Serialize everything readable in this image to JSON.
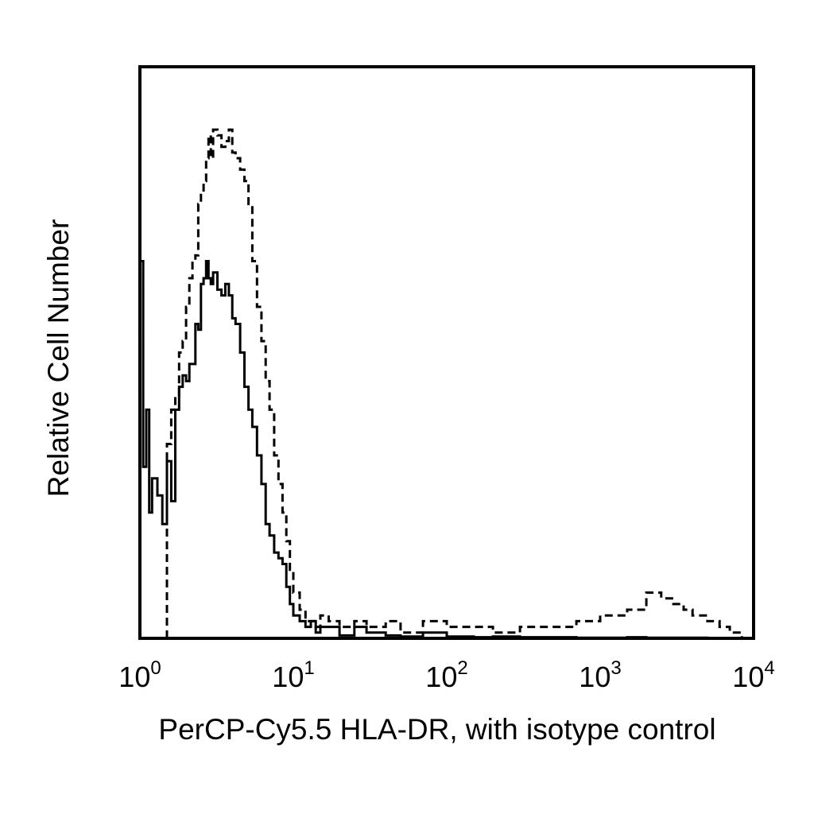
{
  "chart_data": {
    "type": "line",
    "title": "",
    "xlabel": "PerCP-Cy5.5 HLA-DR, with isotype control",
    "ylabel": "Relative Cell Number",
    "x_scale": "log",
    "xlim": [
      1,
      10000
    ],
    "ylim": [
      0,
      100
    ],
    "grid": false,
    "legend": "none",
    "x_ticks": [
      {
        "value": 1,
        "base": "10",
        "exp": "0"
      },
      {
        "value": 10,
        "base": "10",
        "exp": "1"
      },
      {
        "value": 100,
        "base": "10",
        "exp": "2"
      },
      {
        "value": 1000,
        "base": "10",
        "exp": "3"
      },
      {
        "value": 10000,
        "base": "10",
        "exp": "4"
      }
    ],
    "series": [
      {
        "style": "solid",
        "color": "#000000",
        "x": [
          1.0,
          1.05,
          1.1,
          1.15,
          1.2,
          1.3,
          1.4,
          1.5,
          1.6,
          1.7,
          1.8,
          1.9,
          2.0,
          2.1,
          2.2,
          2.3,
          2.4,
          2.5,
          2.6,
          2.7,
          2.8,
          2.9,
          3.0,
          3.2,
          3.4,
          3.6,
          3.8,
          4.0,
          4.2,
          4.5,
          4.8,
          5.1,
          5.4,
          5.8,
          6.2,
          6.6,
          7.0,
          7.5,
          8.0,
          8.5,
          9.0,
          9.5,
          10.0,
          11,
          12,
          13,
          14,
          15,
          17,
          20,
          25,
          30,
          40,
          50,
          70,
          100,
          150,
          200,
          300,
          500,
          700,
          1000,
          1500,
          2000,
          2500,
          3000,
          4000,
          5000,
          6000,
          7000,
          8000
        ],
        "y": [
          66,
          30,
          40,
          22,
          28,
          25,
          20,
          31,
          24,
          40,
          44,
          46,
          45,
          48,
          48,
          55,
          54,
          62,
          63,
          66,
          63,
          62,
          64,
          61,
          60,
          62,
          60,
          56,
          55,
          50,
          44,
          40,
          37,
          32,
          27,
          20,
          18,
          15,
          14,
          13,
          9,
          6,
          4,
          3,
          2,
          3,
          1,
          2,
          2,
          0.5,
          2,
          1,
          0.5,
          0.3,
          1,
          0.3,
          0.2,
          0.3,
          0.2,
          0.2,
          0.1,
          0.1,
          0.2,
          0.1,
          0.1,
          0.1,
          0.1,
          0.05,
          0.05,
          0.05,
          0.05
        ]
      },
      {
        "style": "dashed",
        "color": "#000000",
        "x": [
          1.5,
          1.6,
          1.7,
          1.8,
          1.9,
          2.0,
          2.1,
          2.2,
          2.3,
          2.4,
          2.5,
          2.6,
          2.7,
          2.8,
          2.9,
          3.0,
          3.2,
          3.4,
          3.6,
          3.8,
          4.0,
          4.2,
          4.5,
          4.8,
          5.1,
          5.4,
          5.8,
          6.2,
          6.6,
          7.0,
          7.5,
          8.0,
          8.5,
          9.0,
          9.5,
          10.0,
          11,
          12,
          13,
          14,
          15,
          17,
          20,
          25,
          30,
          40,
          50,
          70,
          100,
          150,
          200,
          300,
          500,
          700,
          1000,
          1500,
          2000,
          2500,
          3000,
          3500,
          4000,
          5000,
          6000,
          7000,
          8000
        ],
        "y": [
          34,
          40,
          42,
          50,
          52,
          58,
          63,
          66,
          67,
          76,
          78,
          80,
          84,
          88,
          84,
          89,
          88,
          86,
          87,
          89,
          85,
          84,
          82,
          80,
          76,
          66,
          58,
          52,
          45,
          40,
          32,
          27,
          22,
          17,
          12,
          8,
          5,
          3,
          3,
          2,
          4,
          3,
          2,
          3,
          2,
          3,
          1,
          3,
          2,
          2,
          1,
          2,
          2,
          3,
          4,
          5,
          8,
          7,
          6,
          5,
          4,
          3,
          2,
          1,
          1
        ]
      }
    ]
  }
}
